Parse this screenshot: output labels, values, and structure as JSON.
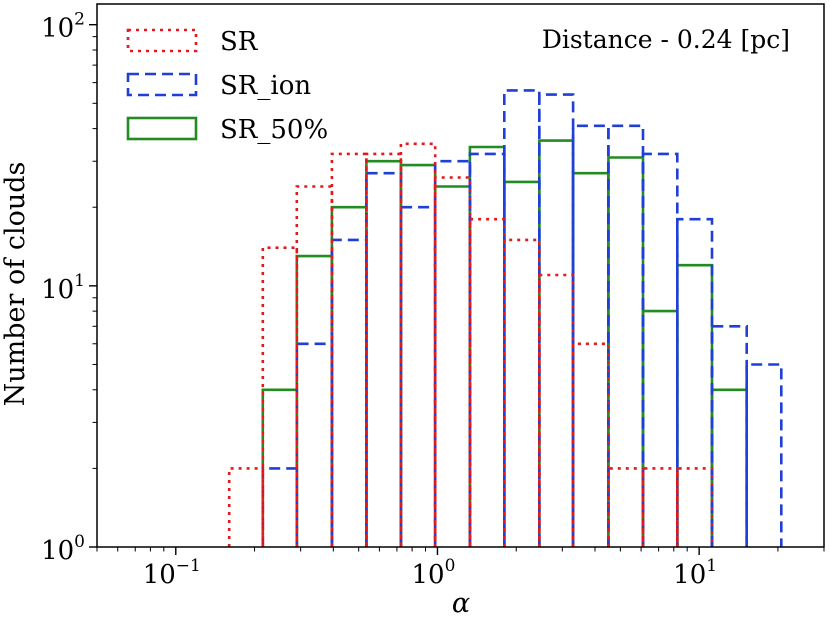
{
  "chart_data": {
    "type": "histogram",
    "xscale": "log",
    "yscale": "log",
    "xlim": [
      0.05,
      30
    ],
    "ylim": [
      1,
      120
    ],
    "xlabel": "α",
    "ylabel": "Number of clouds",
    "annotation": "Distance - 0.24 [pc]",
    "legend_placement": "upper-left",
    "grid": false,
    "x_ticks": [
      {
        "value": 0.1,
        "base": "10",
        "exp": "−1"
      },
      {
        "value": 1,
        "base": "10",
        "exp": "0"
      },
      {
        "value": 10,
        "base": "10",
        "exp": "1"
      }
    ],
    "y_ticks": [
      {
        "value": 1,
        "base": "10",
        "exp": "0"
      },
      {
        "value": 10,
        "base": "10",
        "exp": "1"
      },
      {
        "value": 100,
        "base": "10",
        "exp": "2"
      }
    ],
    "bin_edges": [
      0.16,
      0.215,
      0.29,
      0.395,
      0.535,
      0.725,
      0.98,
      1.33,
      1.8,
      2.45,
      3.3,
      4.5,
      6.1,
      8.25,
      11.2,
      15.2,
      20.6
    ],
    "series": [
      {
        "name": "SR",
        "color": "#e31a1c",
        "dash": "3,5",
        "counts": [
          2,
          14,
          24,
          32,
          32,
          35,
          26,
          18,
          15,
          11,
          6,
          2,
          2,
          2,
          1,
          1
        ]
      },
      {
        "name": "SR_ion",
        "color": "#1f3fd6",
        "dash": "11,6",
        "counts": [
          1,
          2,
          6,
          15,
          27,
          20,
          30,
          32,
          56,
          54,
          41,
          41,
          32,
          18,
          7,
          5
        ]
      },
      {
        "name": "SR_50%",
        "color": "#228b22",
        "dash": "",
        "counts": [
          1,
          4,
          13,
          20,
          30,
          29,
          24,
          34,
          25,
          36,
          27,
          31,
          8,
          12,
          4,
          1
        ]
      }
    ]
  },
  "legend": [
    {
      "label": "SR",
      "series": 0
    },
    {
      "label": "SR_ion",
      "series": 1
    },
    {
      "label": "SR_50%",
      "series": 2
    }
  ]
}
